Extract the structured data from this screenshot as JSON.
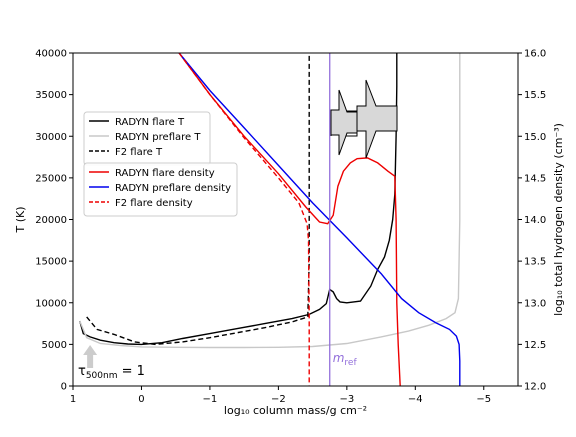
{
  "chart_data": {
    "type": "line",
    "xlabel": "log₁₀ column mass/g cm⁻²",
    "ylabel": "T (K)",
    "ylabel_right": "log₁₀ total hydrogen density (cm⁻³)",
    "xlim": [
      1,
      -5.5
    ],
    "ylim": [
      0,
      40000
    ],
    "ylim_right": [
      12.0,
      16.0
    ],
    "xticks": [
      1,
      0,
      -1,
      -2,
      -3,
      -4,
      -5
    ],
    "xtick_labels": [
      "1",
      "0",
      "−1",
      "−2",
      "−3",
      "−4",
      "−5"
    ],
    "yticks": [
      0,
      5000,
      10000,
      15000,
      20000,
      25000,
      30000,
      35000,
      40000
    ],
    "ytick_labels": [
      "0",
      "5000",
      "10000",
      "15000",
      "20000",
      "25000",
      "30000",
      "35000",
      "40000"
    ],
    "yticks_right": [
      12.0,
      12.5,
      13.0,
      13.5,
      14.0,
      14.5,
      15.0,
      15.5,
      16.0
    ],
    "ytick_labels_right": [
      "12.0",
      "12.5",
      "13.0",
      "13.5",
      "14.0",
      "14.5",
      "15.0",
      "15.5",
      "16.0"
    ],
    "grid": false,
    "legend_placement": "upper-left",
    "legend1": [
      {
        "label": "RADYN flare T",
        "color": "#000000",
        "dash": "solid"
      },
      {
        "label": "RADYN preflare T",
        "color": "#c8c8c8",
        "dash": "solid"
      },
      {
        "label": "F2 flare T",
        "color": "#000000",
        "dash": "dashed"
      }
    ],
    "legend2": [
      {
        "label": "RADYN flare density",
        "color": "#ee0000",
        "dash": "solid"
      },
      {
        "label": "RADYN preflare density",
        "color": "#0000ee",
        "dash": "solid"
      },
      {
        "label": "F2 flare density",
        "color": "#ee0000",
        "dash": "dashed"
      }
    ],
    "annotations": {
      "tau_base": "τ",
      "tau_sub": "500nm",
      "tau_rest": " = 1",
      "mref_base": "m",
      "mref_sub": "ref",
      "mref_x": -2.75,
      "mref_color": "#9370db",
      "tau_arrow_x": 0.75
    },
    "series": [
      {
        "name": "RADYN flare T",
        "axis": "left",
        "color": "#000000",
        "dash": "solid",
        "x": [
          0.9,
          0.85,
          0.75,
          0.6,
          0.4,
          0.2,
          0.0,
          -0.3,
          -0.6,
          -1.0,
          -1.4,
          -1.8,
          -2.2,
          -2.45,
          -2.6,
          -2.7,
          -2.75,
          -2.8,
          -2.85,
          -2.9,
          -3.0,
          -3.2,
          -3.35,
          -3.45,
          -3.55,
          -3.62,
          -3.67,
          -3.7,
          -3.72,
          -3.73,
          -3.73
        ],
        "y": [
          7800,
          6300,
          5900,
          5500,
          5200,
          5050,
          5000,
          5200,
          5700,
          6300,
          6900,
          7500,
          8100,
          8600,
          9200,
          9900,
          11600,
          11300,
          10500,
          10100,
          10000,
          10200,
          12000,
          14000,
          15500,
          17500,
          20000,
          23000,
          30000,
          36000,
          40000
        ]
      },
      {
        "name": "RADYN preflare T",
        "axis": "left",
        "color": "#c8c8c8",
        "dash": "solid",
        "x": [
          0.9,
          0.8,
          0.6,
          0.3,
          0.0,
          -0.5,
          -1.0,
          -1.5,
          -2.0,
          -2.5,
          -3.0,
          -3.5,
          -3.9,
          -4.2,
          -4.45,
          -4.58,
          -4.63,
          -4.65,
          -4.65
        ],
        "y": [
          7800,
          5800,
          5100,
          4850,
          4700,
          4650,
          4620,
          4620,
          4650,
          4750,
          5100,
          5900,
          6600,
          7300,
          8100,
          8800,
          10500,
          20000,
          40000
        ]
      },
      {
        "name": "F2 flare T",
        "axis": "left",
        "color": "#000000",
        "dash": "dashed",
        "x": [
          0.8,
          0.65,
          0.4,
          0.1,
          -0.2,
          -0.6,
          -1.0,
          -1.4,
          -1.8,
          -2.2,
          -2.43,
          -2.45,
          -2.45
        ],
        "y": [
          8300,
          6800,
          6200,
          5300,
          5000,
          5300,
          5800,
          6400,
          7000,
          7700,
          8300,
          15000,
          40000
        ]
      },
      {
        "name": "RADYN flare density",
        "axis": "right",
        "color": "#ee0000",
        "dash": "solid",
        "x": [
          -0.55,
          -1.0,
          -1.5,
          -2.0,
          -2.4,
          -2.6,
          -2.72,
          -2.8,
          -2.87,
          -2.95,
          -3.05,
          -3.15,
          -3.3,
          -3.45,
          -3.6,
          -3.7,
          -3.72,
          -3.73,
          -3.75,
          -3.78
        ],
        "y": [
          16.0,
          15.5,
          15.0,
          14.55,
          14.15,
          13.97,
          13.95,
          14.05,
          14.4,
          14.58,
          14.68,
          14.73,
          14.74,
          14.68,
          14.58,
          14.52,
          14.0,
          13.0,
          12.5,
          12.0
        ]
      },
      {
        "name": "RADYN preflare density",
        "axis": "right",
        "color": "#0000ee",
        "dash": "solid",
        "x": [
          -0.55,
          -1.0,
          -1.5,
          -2.0,
          -2.5,
          -3.0,
          -3.5,
          -3.8,
          -4.05,
          -4.3,
          -4.5,
          -4.6,
          -4.64,
          -4.65,
          -4.65
        ],
        "y": [
          16.0,
          15.55,
          15.1,
          14.65,
          14.2,
          13.78,
          13.35,
          13.05,
          12.88,
          12.76,
          12.68,
          12.6,
          12.5,
          12.3,
          12.0
        ]
      },
      {
        "name": "F2 flare density",
        "axis": "right",
        "color": "#ee0000",
        "dash": "dashed",
        "x": [
          -0.55,
          -1.0,
          -1.5,
          -2.0,
          -2.3,
          -2.42,
          -2.44,
          -2.45,
          -2.45
        ],
        "y": [
          16.0,
          15.5,
          14.98,
          14.5,
          14.2,
          13.95,
          13.75,
          12.8,
          12.0
        ]
      }
    ]
  }
}
